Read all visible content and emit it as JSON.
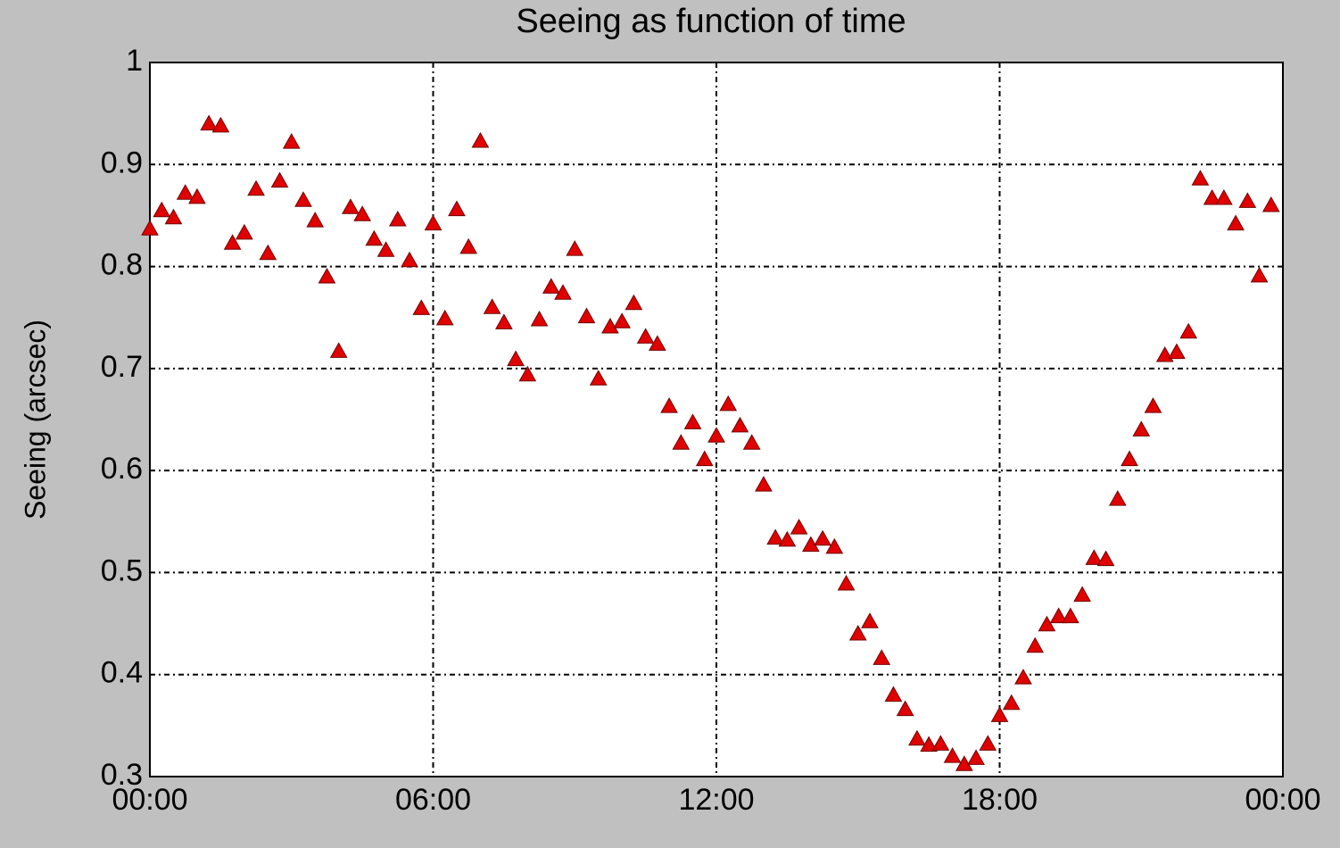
{
  "chart_data": {
    "type": "scatter",
    "title": "Seeing as function of time",
    "y_label": "Seeing (arcsec)",
    "color": "#e00000",
    "grid": true,
    "xlim": [
      0,
      24
    ],
    "xticks": [
      {
        "value": 0,
        "label": "00:00"
      },
      {
        "value": 6,
        "label": "06:00"
      },
      {
        "value": 12,
        "label": "12:00"
      },
      {
        "value": 18,
        "label": "18:00"
      },
      {
        "value": 24,
        "label": "00:00"
      }
    ],
    "ylim": [
      0.3,
      1
    ],
    "yticks": [
      0.3,
      0.4,
      0.5,
      0.6,
      0.7,
      0.8,
      0.9,
      1
    ],
    "x": [
      0,
      0.25,
      0.5,
      0.75,
      1,
      1.25,
      1.5,
      1.75,
      2,
      2.25,
      2.5,
      2.75,
      3,
      3.25,
      3.5,
      3.75,
      4,
      4.25,
      4.5,
      4.75,
      5,
      5.25,
      5.5,
      5.75,
      6,
      6.25,
      6.5,
      6.75,
      7,
      7.25,
      7.5,
      7.75,
      8,
      8.25,
      8.5,
      8.75,
      9,
      9.25,
      9.5,
      9.75,
      10,
      10.25,
      10.5,
      10.75,
      11,
      11.25,
      11.5,
      11.75,
      12,
      12.25,
      12.5,
      12.75,
      13,
      13.25,
      13.5,
      13.75,
      14,
      14.25,
      14.5,
      14.75,
      15,
      15.25,
      15.5,
      15.75,
      16,
      16.25,
      16.5,
      16.75,
      17,
      17.25,
      17.5,
      17.75,
      18,
      18.25,
      18.5,
      18.75,
      19,
      19.25,
      19.5,
      19.75,
      20,
      20.25,
      20.5,
      20.75,
      21,
      21.25,
      21.5,
      21.75,
      22,
      22.25,
      22.5,
      22.75,
      23,
      23.25,
      23.5,
      23.75
    ],
    "values": [
      0.837,
      0.855,
      0.848,
      0.872,
      0.868,
      0.94,
      0.938,
      0.823,
      0.833,
      0.876,
      0.813,
      0.884,
      0.922,
      0.865,
      0.845,
      0.79,
      0.717,
      0.858,
      0.851,
      0.827,
      0.816,
      0.846,
      0.806,
      0.759,
      0.842,
      0.749,
      0.856,
      0.819,
      0.923,
      0.76,
      0.745,
      0.709,
      0.694,
      0.748,
      0.78,
      0.774,
      0.817,
      0.751,
      0.69,
      0.741,
      0.746,
      0.764,
      0.731,
      0.724,
      0.663,
      0.627,
      0.647,
      0.611,
      0.634,
      0.665,
      0.644,
      0.627,
      0.586,
      0.534,
      0.532,
      0.544,
      0.527,
      0.533,
      0.525,
      0.489,
      0.44,
      0.452,
      0.416,
      0.38,
      0.366,
      0.337,
      0.331,
      0.332,
      0.32,
      0.312,
      0.318,
      0.332,
      0.36,
      0.372,
      0.397,
      0.428,
      0.449,
      0.457,
      0.457,
      0.478,
      0.514,
      0.513,
      0.572,
      0.611,
      0.64,
      0.663,
      0.713,
      0.716,
      0.736,
      0.886,
      0.867,
      0.867,
      0.842,
      0.864,
      0.791,
      0.86
    ]
  }
}
